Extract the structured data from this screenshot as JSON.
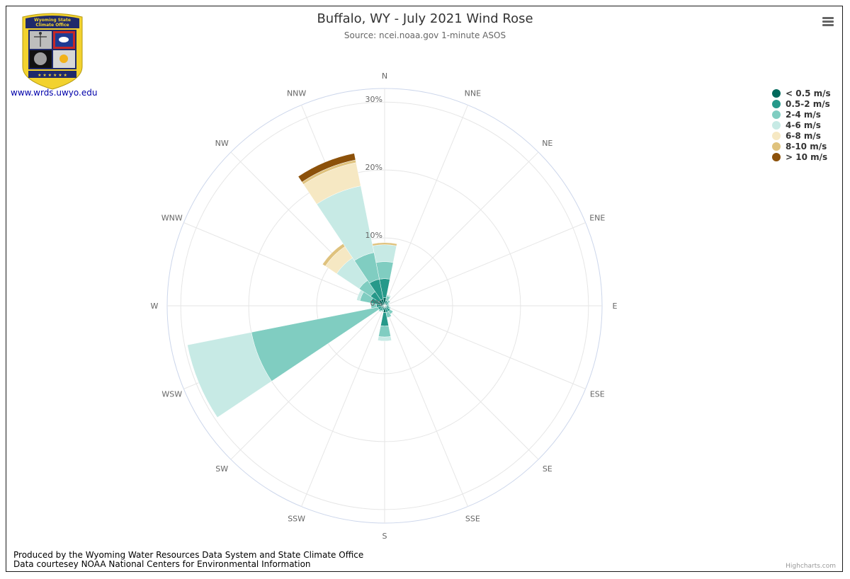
{
  "chart_data": {
    "type": "windrose",
    "title": "Buffalo, WY - July 2021 Wind Rose",
    "subtitle": "Source: ncei.noaa.gov 1-minute ASOS",
    "directions": [
      "N",
      "NNE",
      "NE",
      "ENE",
      "E",
      "ESE",
      "SE",
      "SSE",
      "S",
      "SSW",
      "SW",
      "WSW",
      "W",
      "WNW",
      "NW",
      "NNW"
    ],
    "radial_ticks": [
      "0%",
      "10%",
      "20%",
      "30%"
    ],
    "rmax": 30,
    "gridlines": true,
    "legend_position": "right",
    "series": [
      {
        "name": "< 0.5 m/s",
        "color": "#00695c",
        "values": [
          1.2,
          0.3,
          0.3,
          0.2,
          0.3,
          0.3,
          0.4,
          0.3,
          1.0,
          0.3,
          0.5,
          0.4,
          0.5,
          0.6,
          1.0,
          1.0
        ]
      },
      {
        "name": "0.5-2 m/s",
        "color": "#26998a",
        "values": [
          2.8,
          0.5,
          0.4,
          0.3,
          0.3,
          0.4,
          0.6,
          0.7,
          2.0,
          0.4,
          0.4,
          0.6,
          0.7,
          1.5,
          1.5,
          3.0
        ]
      },
      {
        "name": "2-4 m/s",
        "color": "#80cdc1",
        "values": [
          2.5,
          0.7,
          0.3,
          0.2,
          0.1,
          0.2,
          0.5,
          0.8,
          1.6,
          0.2,
          0.2,
          19.0,
          0.8,
          1.6,
          2.0,
          4.0
        ]
      },
      {
        "name": "4-6 m/s",
        "color": "#c7eae5",
        "values": [
          2.5,
          0.2,
          0.0,
          0.0,
          0.0,
          0.0,
          0.0,
          0.0,
          0.6,
          0.0,
          0.0,
          9.6,
          0.0,
          0.5,
          4.0,
          10.0
        ]
      },
      {
        "name": "6-8 m/s",
        "color": "#f6e8c3",
        "values": [
          0.0,
          0.0,
          0.0,
          0.0,
          0.0,
          0.0,
          0.0,
          0.0,
          0.0,
          0.0,
          0.0,
          0.0,
          0.0,
          0.0,
          2.0,
          3.5
        ]
      },
      {
        "name": "8-10 m/s",
        "color": "#dfc27d",
        "values": [
          0.3,
          0.0,
          0.0,
          0.0,
          0.0,
          0.0,
          0.0,
          0.0,
          0.0,
          0.0,
          0.0,
          0.0,
          0.0,
          0.0,
          0.5,
          0.4
        ]
      },
      {
        "name": "> 10 m/s",
        "color": "#8c510a",
        "values": [
          0.0,
          0.0,
          0.0,
          0.0,
          0.0,
          0.0,
          0.0,
          0.0,
          0.0,
          0.0,
          0.0,
          0.0,
          0.0,
          0.0,
          0.0,
          1.0
        ]
      }
    ]
  },
  "logo": {
    "banner_line1": "Wyoming State",
    "banner_line2": "Climate Office",
    "url_text": "www.wrds.uwyo.edu",
    "stars": "★ ★ ★ ★ ★ ★"
  },
  "menu": {
    "icon": "hamburger-menu-icon"
  },
  "footer": {
    "line1": "Produced by the Wyoming Water Resources Data System and State Climate Office",
    "line2": "Data courtesey NOAA National Centers for Environmental Information"
  },
  "credits": "Highcharts.com"
}
